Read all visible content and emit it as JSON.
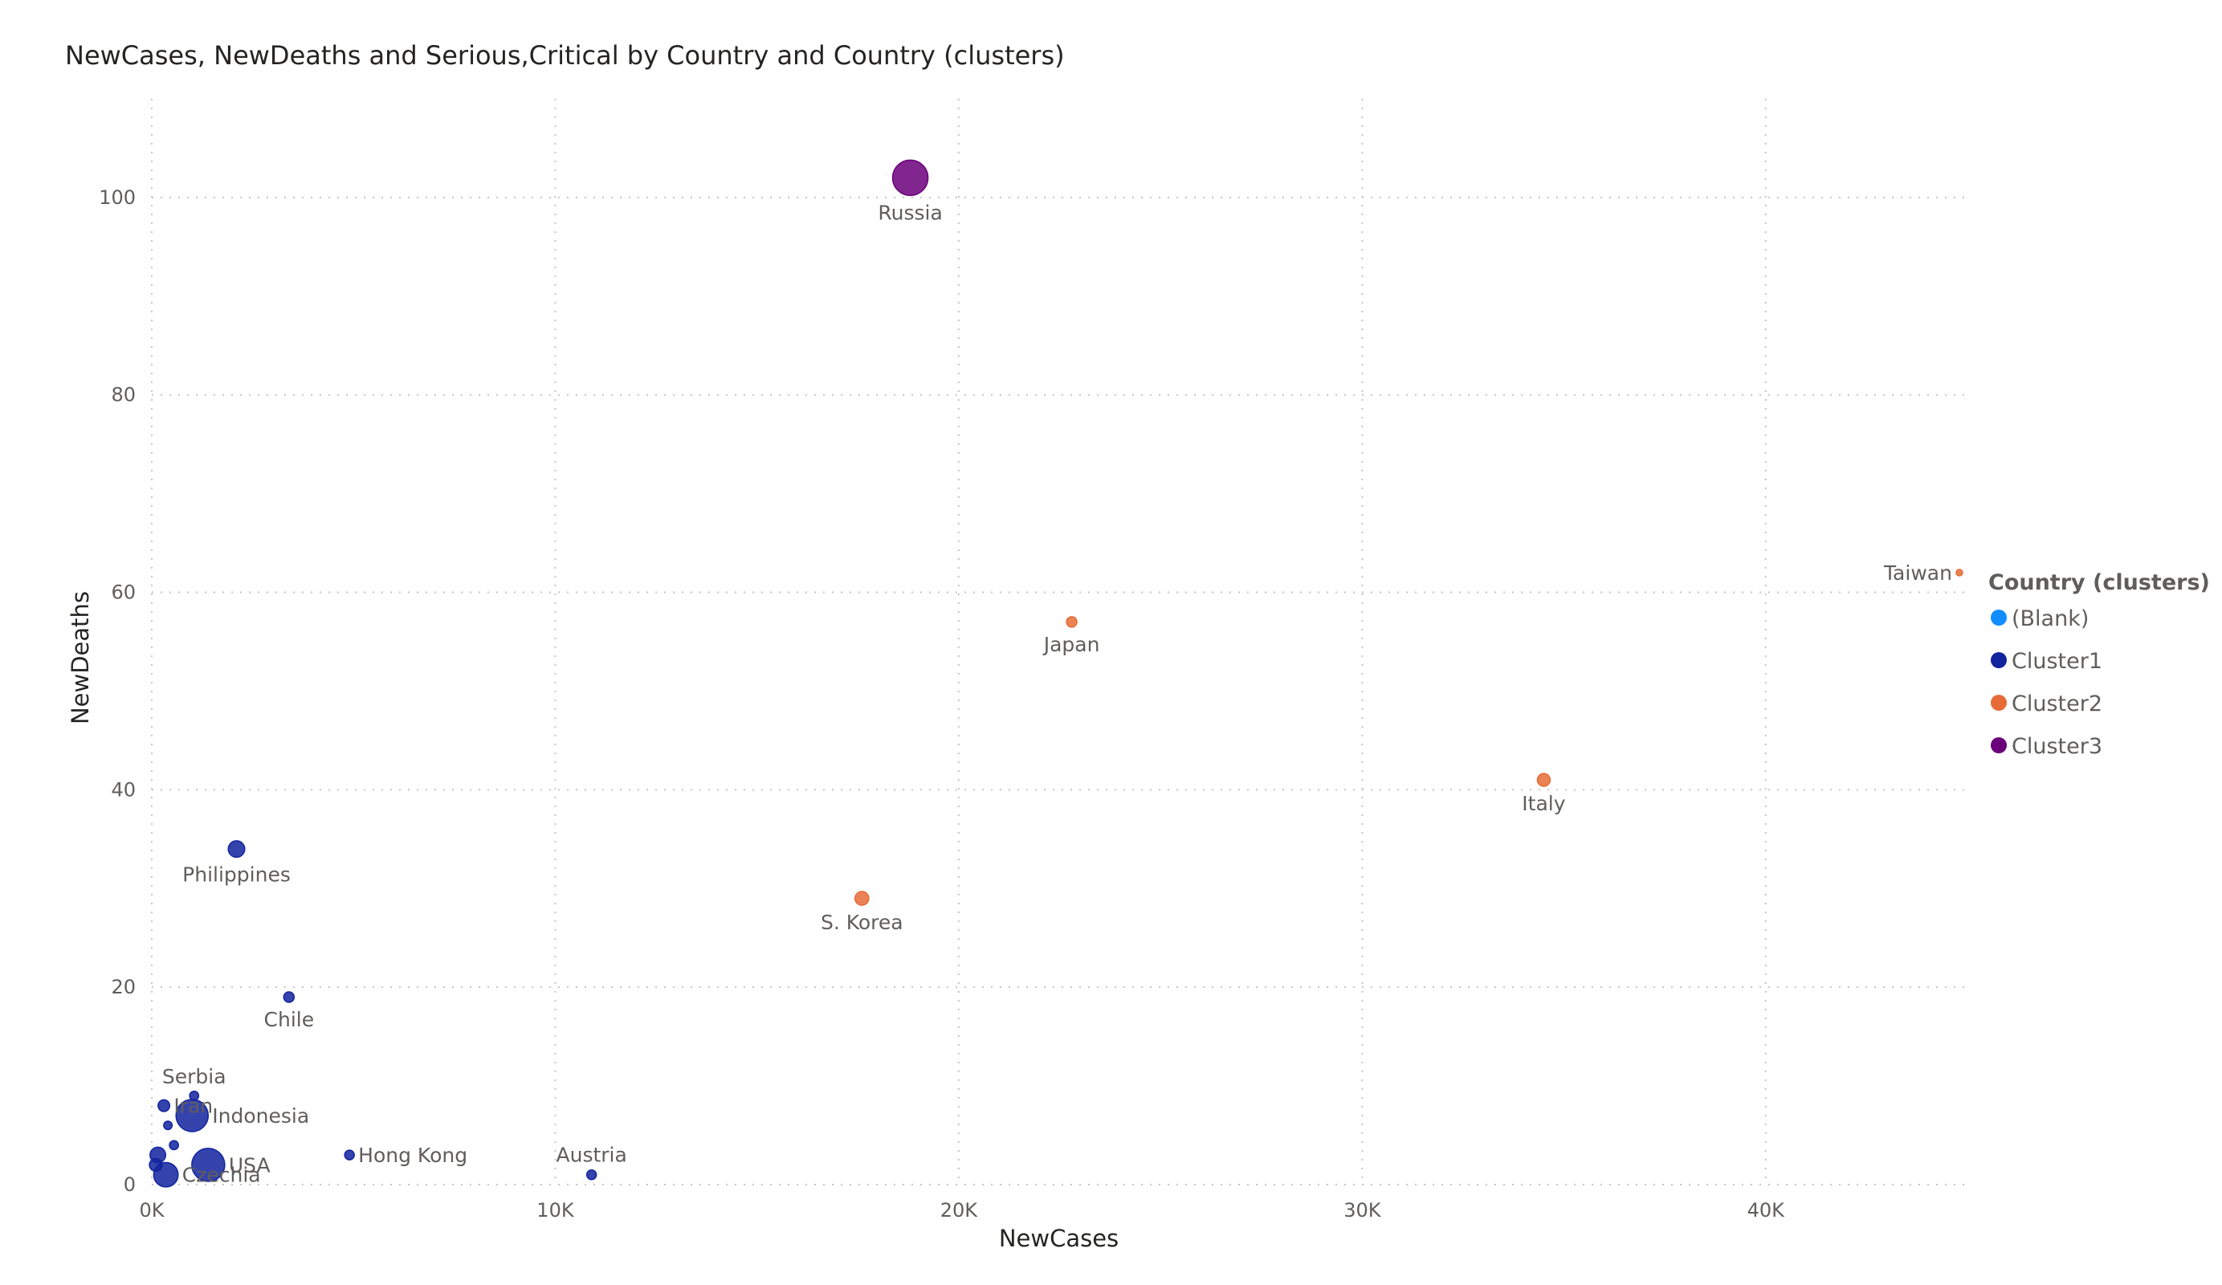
{
  "chart_data": {
    "type": "scatter",
    "title": "NewCases, NewDeaths and Serious,Critical by Country and Country (clusters)",
    "xlabel": "NewCases",
    "ylabel": "NewDeaths",
    "size_measure": "Serious,Critical",
    "xlim": [
      0,
      45000
    ],
    "ylim": [
      0,
      110
    ],
    "x_ticks": [
      0,
      10000,
      20000,
      30000,
      40000
    ],
    "x_tick_labels": [
      "0K",
      "10K",
      "20K",
      "30K",
      "40K"
    ],
    "y_ticks": [
      0,
      20,
      40,
      60,
      80,
      100
    ],
    "y_tick_labels": [
      "0",
      "20",
      "40",
      "60",
      "80",
      "100"
    ],
    "grid": true,
    "legend": {
      "title": "Country (clusters)",
      "placement": "right",
      "entries": [
        {
          "name": "(Blank)",
          "color": "#118dff"
        },
        {
          "name": "Cluster1",
          "color": "#12239e"
        },
        {
          "name": "Cluster2",
          "color": "#e66c37"
        },
        {
          "name": "Cluster3",
          "color": "#6b007b"
        }
      ]
    },
    "points": [
      {
        "label": "Russia",
        "x": 18800,
        "y": 102,
        "size": 2300,
        "cluster": "Cluster3",
        "label_pos": "below"
      },
      {
        "label": "Taiwan",
        "x": 44800,
        "y": 62,
        "size": 20,
        "cluster": "Cluster2",
        "label_pos": "left"
      },
      {
        "label": "Japan",
        "x": 22800,
        "y": 57,
        "size": 200,
        "cluster": "Cluster2",
        "label_pos": "below"
      },
      {
        "label": "Italy",
        "x": 34500,
        "y": 41,
        "size": 300,
        "cluster": "Cluster2",
        "label_pos": "below"
      },
      {
        "label": "S. Korea",
        "x": 17600,
        "y": 29,
        "size": 350,
        "cluster": "Cluster2",
        "label_pos": "below"
      },
      {
        "label": "Philippines",
        "x": 2100,
        "y": 34,
        "size": 500,
        "cluster": "Cluster1",
        "label_pos": "below"
      },
      {
        "label": "Chile",
        "x": 3400,
        "y": 19,
        "size": 200,
        "cluster": "Cluster1",
        "label_pos": "below"
      },
      {
        "label": "Serbia",
        "x": 1050,
        "y": 9,
        "size": 150,
        "cluster": "Cluster1",
        "label_pos": "above"
      },
      {
        "label": "Indonesia",
        "x": 1000,
        "y": 7,
        "size": 1900,
        "cluster": "Cluster1",
        "label_pos": "right"
      },
      {
        "label": "Iran",
        "x": 300,
        "y": 8,
        "size": 250,
        "cluster": "Cluster1",
        "label_pos": "right"
      },
      {
        "label": "Hong Kong",
        "x": 4900,
        "y": 3,
        "size": 170,
        "cluster": "Cluster1",
        "label_pos": "right"
      },
      {
        "label": "Austria",
        "x": 10900,
        "y": 1,
        "size": 170,
        "cluster": "Cluster1",
        "label_pos": "above"
      },
      {
        "label": "USA",
        "x": 1400,
        "y": 2,
        "size": 2000,
        "cluster": "Cluster1",
        "label_pos": "right"
      },
      {
        "label": "Czechia",
        "x": 350,
        "y": 1,
        "size": 1100,
        "cluster": "Cluster1",
        "label_pos": "right"
      },
      {
        "label": "",
        "x": 550,
        "y": 4,
        "size": 150,
        "cluster": "Cluster1",
        "label_pos": "none"
      },
      {
        "label": "",
        "x": 400,
        "y": 6,
        "size": 130,
        "cluster": "Cluster1",
        "label_pos": "none"
      },
      {
        "label": "",
        "x": 150,
        "y": 3,
        "size": 450,
        "cluster": "Cluster1",
        "label_pos": "none"
      },
      {
        "label": "",
        "x": 100,
        "y": 2,
        "size": 300,
        "cluster": "Cluster1",
        "label_pos": "none"
      }
    ]
  }
}
